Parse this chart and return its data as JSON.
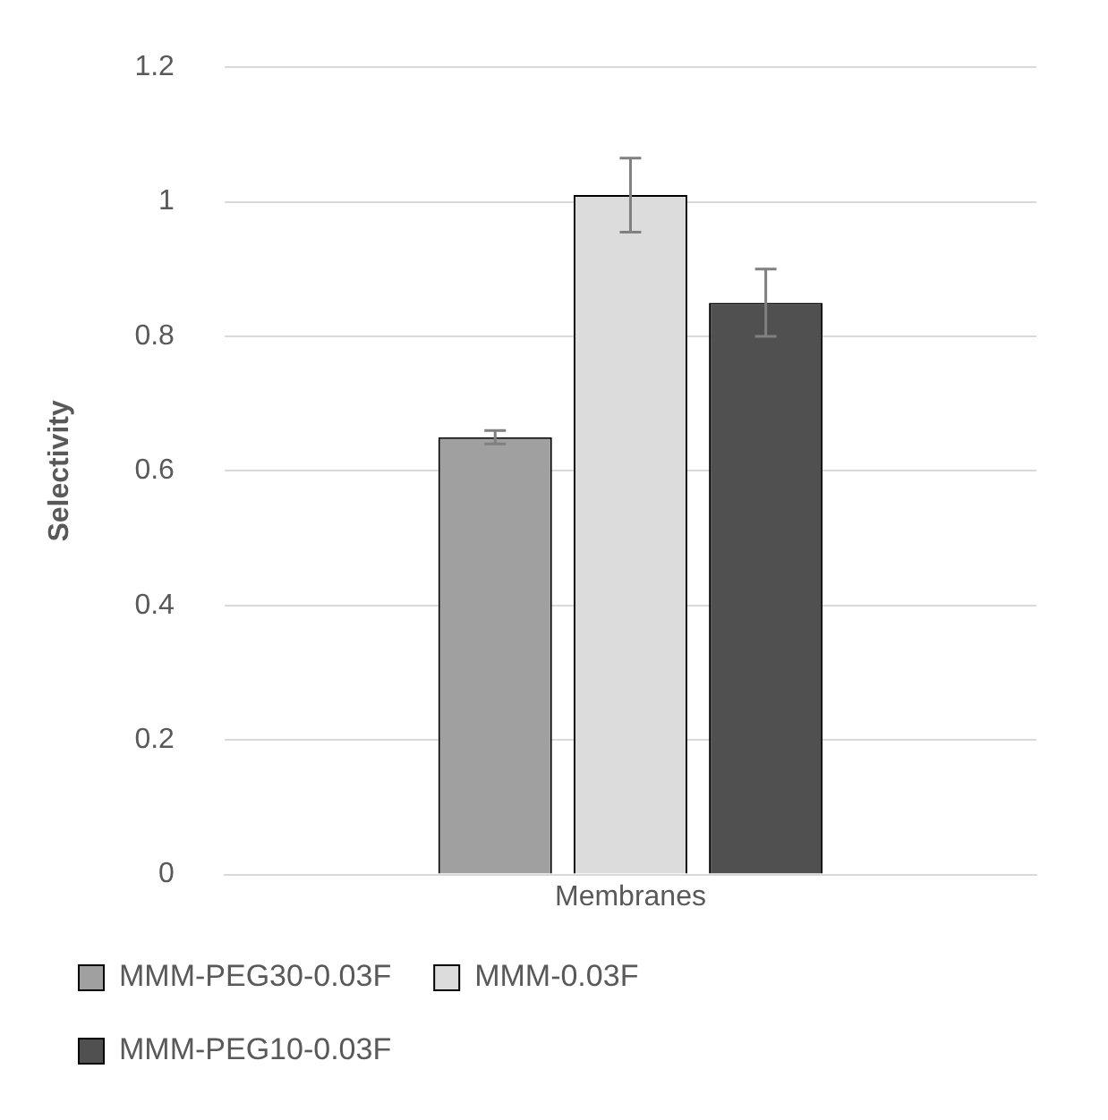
{
  "chart_data": {
    "type": "bar",
    "ylabel": "Selectivity",
    "categories": [
      "Membranes"
    ],
    "series": [
      {
        "name": "MMM-PEG30-0.03F",
        "color": "#a0a0a0",
        "values": [
          0.65
        ],
        "errors": [
          0.01
        ]
      },
      {
        "name": "MMM-0.03F",
        "color": "#dcdcdc",
        "values": [
          1.01
        ],
        "errors": [
          0.055
        ]
      },
      {
        "name": "MMM-PEG10-0.03F",
        "color": "#505050",
        "values": [
          0.85
        ],
        "errors": [
          0.05
        ]
      }
    ],
    "ylim": [
      0,
      1.2
    ],
    "yticks": [
      0,
      0.2,
      0.4,
      0.6,
      0.8,
      1,
      1.2
    ],
    "grid": "y",
    "legend": "bottom"
  }
}
